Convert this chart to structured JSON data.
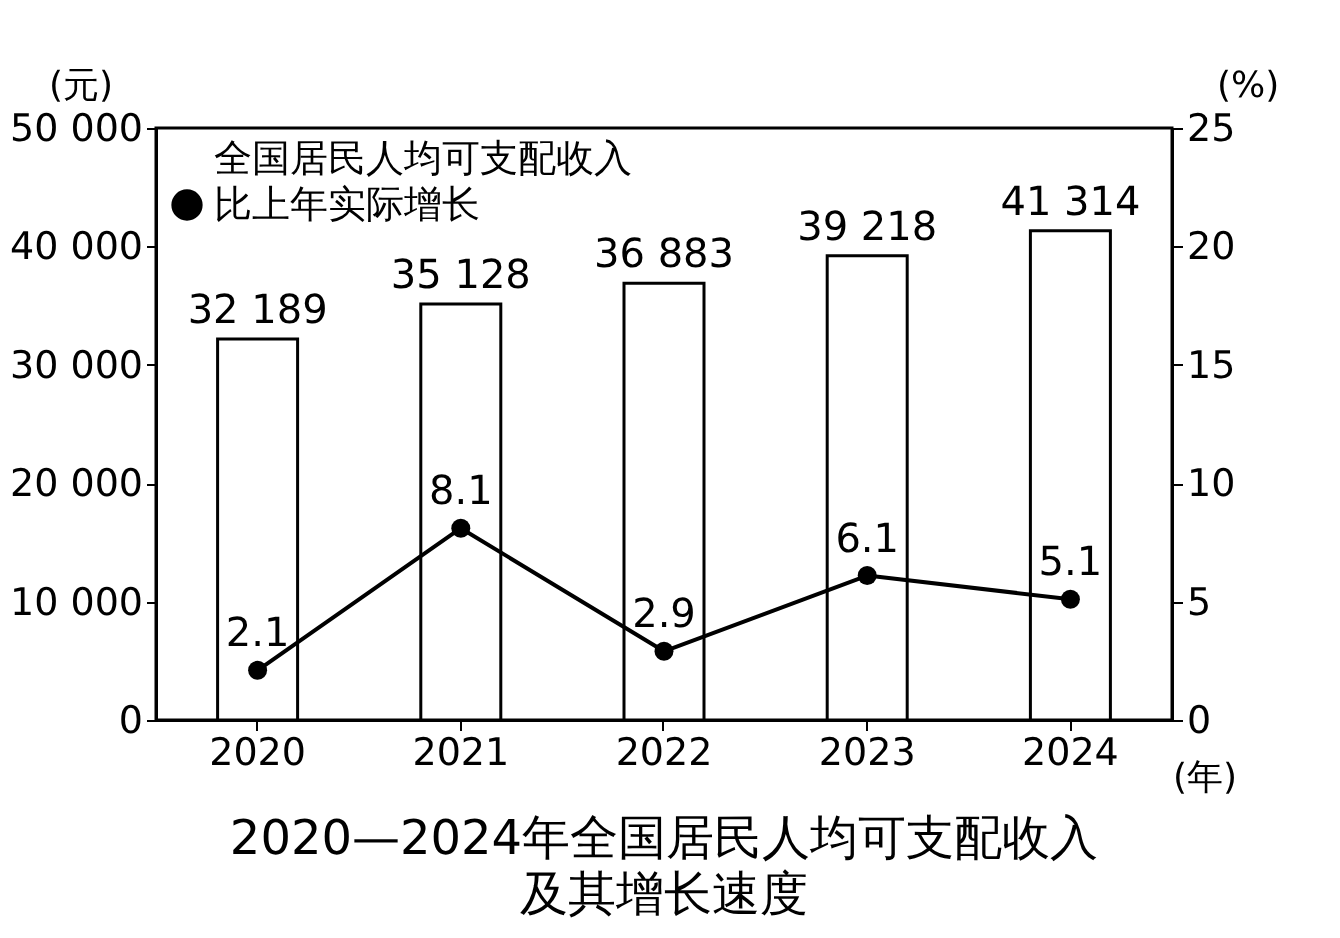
{
  "chart_data": {
    "type": "bar",
    "title": "2020—2024年全国居民人均可支配收入",
    "subtitle": "及其增长速度",
    "xlabel": "(年)",
    "ylabel": "(元)",
    "y2label": "(%)",
    "categories": [
      "2020",
      "2021",
      "2022",
      "2023",
      "2024"
    ],
    "series": [
      {
        "name": "全国居民人均可支配收入",
        "color": "#ffffff",
        "values": [
          32189,
          35128,
          36883,
          39218,
          41314
        ],
        "value_labels": [
          "32 189",
          "35 128",
          "36 883",
          "39 218",
          "41 314"
        ]
      },
      {
        "name": "比上年实际增长",
        "type": "line",
        "axis": "y2",
        "color": "#000000",
        "marker": "circle",
        "line_style": "solid",
        "values": [
          2.1,
          8.1,
          2.9,
          6.1,
          5.1
        ],
        "value_labels": [
          "2.1",
          "8.1",
          "2.9",
          "6.1",
          "5.1"
        ]
      }
    ],
    "ylim": [
      0,
      50000
    ],
    "yticks": [
      0,
      {
        "value": 10000,
        "label": "10 000"
      },
      {
        "value": 20000,
        "label": "20 000"
      },
      {
        "value": 30000,
        "label": "30 000"
      },
      {
        "value": 40000,
        "label": "40 000"
      },
      {
        "value": 50000,
        "label": "50 000"
      }
    ],
    "y2lim": [
      0,
      25
    ],
    "y2ticks": [
      0,
      5,
      10,
      15,
      20,
      25
    ],
    "grid": false,
    "legend": "top left"
  }
}
